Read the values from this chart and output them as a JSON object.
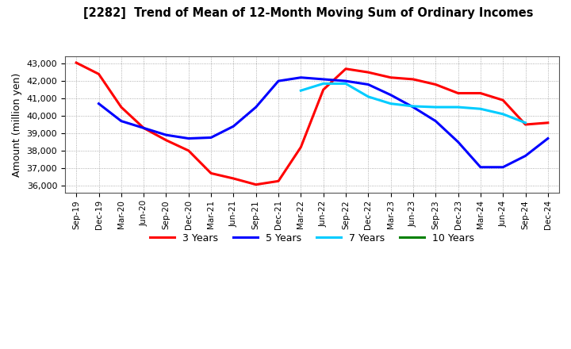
{
  "title": "[2282]  Trend of Mean of 12-Month Moving Sum of Ordinary Incomes",
  "ylabel": "Amount (million yen)",
  "ylim": [
    35600,
    43400
  ],
  "yticks": [
    36000,
    37000,
    38000,
    39000,
    40000,
    41000,
    42000,
    43000
  ],
  "ytick_labels": [
    "36,000",
    "37,000",
    "38,000",
    "39,000",
    "40,000",
    "41,000",
    "42,000",
    "43,000"
  ],
  "x_labels": [
    "Sep-19",
    "Dec-19",
    "Mar-20",
    "Jun-20",
    "Sep-20",
    "Dec-20",
    "Mar-21",
    "Jun-21",
    "Sep-21",
    "Dec-21",
    "Mar-22",
    "Jun-22",
    "Sep-22",
    "Dec-22",
    "Mar-23",
    "Jun-23",
    "Sep-23",
    "Dec-23",
    "Mar-24",
    "Jun-24",
    "Sep-24",
    "Dec-24"
  ],
  "series_3yr": {
    "name": "3 Years",
    "color": "#ff0000",
    "x": [
      0,
      1,
      2,
      3,
      4,
      5,
      6,
      7,
      8,
      9,
      10,
      11,
      12,
      13,
      14,
      15,
      16,
      17,
      18,
      19,
      20,
      21
    ],
    "y": [
      43050,
      42400,
      40500,
      39300,
      38600,
      38000,
      36700,
      36400,
      36050,
      36250,
      38200,
      41500,
      42700,
      42500,
      42200,
      42100,
      41800,
      41300,
      41300,
      40900,
      39500,
      39600
    ]
  },
  "series_5yr": {
    "name": "5 Years",
    "color": "#0000ff",
    "x": [
      1,
      2,
      3,
      4,
      5,
      6,
      7,
      8,
      9,
      10,
      11,
      12,
      13,
      14,
      15,
      16,
      17,
      18,
      19,
      20,
      21
    ],
    "y": [
      40700,
      39700,
      39300,
      38900,
      38700,
      38750,
      39400,
      40500,
      42000,
      42200,
      42100,
      42000,
      41800,
      41200,
      40500,
      39700,
      38500,
      37050,
      37050,
      37700,
      38700
    ]
  },
  "series_7yr": {
    "name": "7 Years",
    "color": "#00ccff",
    "x": [
      10,
      11,
      12,
      13,
      14,
      15,
      16,
      17,
      18,
      19,
      20
    ],
    "y": [
      41450,
      41850,
      41850,
      41100,
      40700,
      40550,
      40500,
      40500,
      40400,
      40100,
      39600
    ]
  },
  "legend_entries": [
    "3 Years",
    "5 Years",
    "7 Years",
    "10 Years"
  ],
  "legend_colors": [
    "#ff0000",
    "#0000ff",
    "#00ccff",
    "#008000"
  ],
  "background_color": "#ffffff",
  "grid_color": "#999999"
}
